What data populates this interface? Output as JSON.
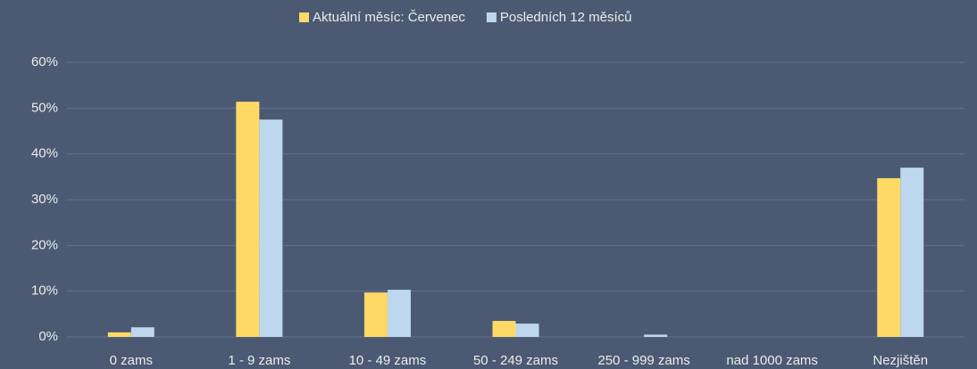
{
  "chart_data": {
    "type": "bar",
    "categories": [
      "0 zams",
      "1 - 9 zams",
      "10 - 49 zams",
      "50 - 249 zams",
      "250 - 999 zams",
      "nad 1000 zams",
      "Nezjištěn"
    ],
    "series": [
      {
        "name": "Aktuální měsíc: Červenec",
        "color": "#ffd966",
        "values": [
          1.0,
          51.4,
          9.7,
          3.5,
          0,
          0,
          34.7
        ]
      },
      {
        "name": "Posledních 12 měsíců",
        "color": "#bdd7ee",
        "values": [
          2.1,
          47.5,
          10.3,
          2.9,
          0.5,
          0,
          37.0
        ]
      }
    ],
    "ylim": [
      0,
      60
    ],
    "yticks": [
      {
        "value": 0,
        "label": "0%"
      },
      {
        "value": 10,
        "label": "10%"
      },
      {
        "value": 20,
        "label": "20%"
      },
      {
        "value": 30,
        "label": "30%"
      },
      {
        "value": 40,
        "label": "40%"
      },
      {
        "value": 50,
        "label": "50%"
      },
      {
        "value": 60,
        "label": "60%"
      }
    ],
    "grid": true,
    "legend": "top"
  }
}
